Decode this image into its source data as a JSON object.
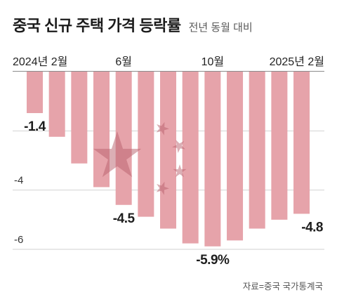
{
  "colors": {
    "bar": "#e6a3aa",
    "star": "#b8606b",
    "grid": "#d2d2d2",
    "axis": "#8c8c8c"
  },
  "chart_data": {
    "type": "bar",
    "title": "중국 신규 주택 가격 등락률",
    "subtitle": "전년 동월 대비",
    "source": "자료=중국 국가통계국",
    "categories": [
      "2024년 2월",
      "",
      "",
      "",
      "6월",
      "",
      "",
      "",
      "10월",
      "",
      "",
      "",
      "2025년 2월"
    ],
    "values": [
      -1.4,
      -2.2,
      -3.1,
      -3.9,
      -4.5,
      -4.9,
      -5.3,
      -5.8,
      -5.9,
      -5.7,
      -5.3,
      -5.0,
      -4.8
    ],
    "data_labels": [
      "-1.4",
      "",
      "",
      "",
      "-4.5",
      "",
      "",
      "",
      "-5.9%",
      "",
      "",
      "",
      "-4.8"
    ],
    "yticks": [
      -2,
      -4,
      -6
    ],
    "ytick_labels": [
      "",
      "-4",
      "-6"
    ],
    "ylim": [
      -6,
      0
    ],
    "xlabel": "",
    "ylabel": "",
    "grid": true,
    "x_axis_position": "top"
  }
}
